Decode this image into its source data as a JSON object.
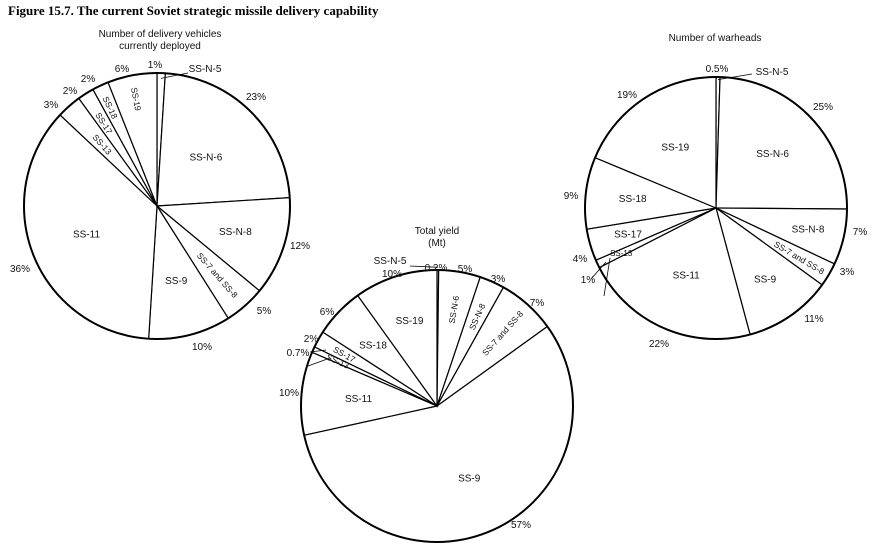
{
  "figure": {
    "title": "Figure 15.7. The current Soviet strategic missile delivery capability"
  },
  "chart_data": [
    {
      "type": "pie",
      "title": "Number of delivery vehicles currently deployed",
      "slices": [
        {
          "name": "SS-N-5",
          "value": 1,
          "pct": "1%"
        },
        {
          "name": "SS-N-6",
          "value": 23,
          "pct": "23%"
        },
        {
          "name": "SS-N-8",
          "value": 12,
          "pct": "12%"
        },
        {
          "name": "SS-7 and SS-8",
          "value": 5,
          "pct": "5%"
        },
        {
          "name": "SS-9",
          "value": 10,
          "pct": "10%"
        },
        {
          "name": "SS-11",
          "value": 36,
          "pct": "36%"
        },
        {
          "name": "SS-13",
          "value": 3,
          "pct": "3%"
        },
        {
          "name": "SS-17",
          "value": 2,
          "pct": "2%"
        },
        {
          "name": "SS-18",
          "value": 2,
          "pct": "2%"
        },
        {
          "name": "SS-19",
          "value": 6,
          "pct": "6%"
        }
      ]
    },
    {
      "type": "pie",
      "title": "Total yield (Mt)",
      "slices": [
        {
          "name": "SS-N-5",
          "value": 0.2,
          "pct": "0.2%"
        },
        {
          "name": "SS-N-6",
          "value": 5,
          "pct": "5%"
        },
        {
          "name": "SS-N-8",
          "value": 3,
          "pct": "3%"
        },
        {
          "name": "SS-7 and SS-8",
          "value": 7,
          "pct": "7%"
        },
        {
          "name": "SS-9",
          "value": 57,
          "pct": "57%"
        },
        {
          "name": "SS-11",
          "value": 10,
          "pct": "10%"
        },
        {
          "name": "SS-13",
          "value": 0.7,
          "pct": "0.7%"
        },
        {
          "name": "SS-17",
          "value": 2,
          "pct": "2%"
        },
        {
          "name": "SS-18",
          "value": 6,
          "pct": "6%"
        },
        {
          "name": "SS-19",
          "value": 10,
          "pct": "10%"
        }
      ]
    },
    {
      "type": "pie",
      "title": "Number of warheads",
      "slices": [
        {
          "name": "SS-N-5",
          "value": 0.5,
          "pct": "0.5%"
        },
        {
          "name": "SS-N-6",
          "value": 25,
          "pct": "25%"
        },
        {
          "name": "SS-N-8",
          "value": 7,
          "pct": "7%"
        },
        {
          "name": "SS-7 and SS-8",
          "value": 3,
          "pct": "3%"
        },
        {
          "name": "SS-9",
          "value": 11,
          "pct": "11%"
        },
        {
          "name": "SS-11",
          "value": 22,
          "pct": "22%"
        },
        {
          "name": "SS-13",
          "value": 1,
          "pct": "1%"
        },
        {
          "name": "SS-17",
          "value": 4,
          "pct": "4%"
        },
        {
          "name": "SS-18",
          "value": 9,
          "pct": "9%"
        },
        {
          "name": "SS-19",
          "value": 19,
          "pct": "19%"
        }
      ]
    }
  ]
}
